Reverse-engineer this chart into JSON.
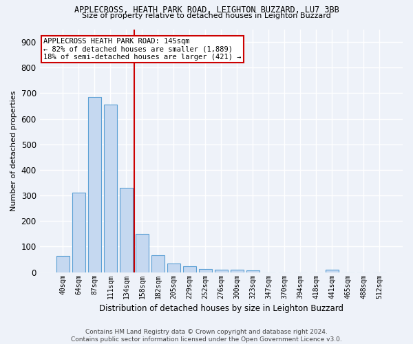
{
  "title1": "APPLECROSS, HEATH PARK ROAD, LEIGHTON BUZZARD, LU7 3BB",
  "title2": "Size of property relative to detached houses in Leighton Buzzard",
  "xlabel": "Distribution of detached houses by size in Leighton Buzzard",
  "ylabel": "Number of detached properties",
  "categories": [
    "40sqm",
    "64sqm",
    "87sqm",
    "111sqm",
    "134sqm",
    "158sqm",
    "182sqm",
    "205sqm",
    "229sqm",
    "252sqm",
    "276sqm",
    "300sqm",
    "323sqm",
    "347sqm",
    "370sqm",
    "394sqm",
    "418sqm",
    "441sqm",
    "465sqm",
    "488sqm",
    "512sqm"
  ],
  "values": [
    63,
    310,
    685,
    655,
    330,
    150,
    67,
    35,
    22,
    12,
    10,
    10,
    8,
    0,
    0,
    0,
    0,
    10,
    0,
    0,
    0
  ],
  "bar_color": "#c5d8f0",
  "bar_edgecolor": "#5a9fd4",
  "vline_x": 4.5,
  "annotation_line1": "APPLECROSS HEATH PARK ROAD: 145sqm",
  "annotation_line2": "← 82% of detached houses are smaller (1,889)",
  "annotation_line3": "18% of semi-detached houses are larger (421) →",
  "vline_color": "#cc0000",
  "annotation_box_edgecolor": "#cc0000",
  "ylim": [
    0,
    950
  ],
  "yticks": [
    0,
    100,
    200,
    300,
    400,
    500,
    600,
    700,
    800,
    900
  ],
  "footer1": "Contains HM Land Registry data © Crown copyright and database right 2024.",
  "footer2": "Contains public sector information licensed under the Open Government Licence v3.0.",
  "background_color": "#eef2f9",
  "grid_color": "#ffffff",
  "title1_fontsize": 8.5,
  "title2_fontsize": 8.0,
  "ylabel_fontsize": 8.0,
  "xlabel_fontsize": 8.5,
  "ytick_fontsize": 8.5,
  "xtick_fontsize": 7.0,
  "annotation_fontsize": 7.5,
  "footer_fontsize": 6.5
}
